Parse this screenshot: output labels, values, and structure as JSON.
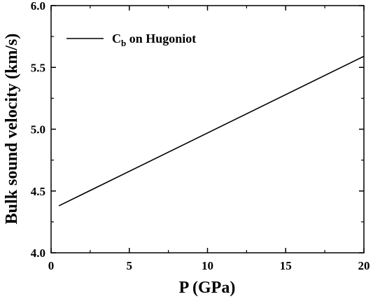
{
  "chart_data": {
    "type": "line",
    "xlabel": "P (GPa)",
    "ylabel": "Bulk sound velocity (km/s)",
    "xlim": [
      0,
      20
    ],
    "ylim": [
      4.0,
      6.0
    ],
    "xticks": [
      "0",
      "5",
      "10",
      "15",
      "20"
    ],
    "yticks": [
      "4.0",
      "4.5",
      "5.0",
      "5.5",
      "6.0"
    ],
    "grid": false,
    "legend_position": "top-left",
    "series": [
      {
        "name_main": "C",
        "name_sub": "b",
        "name_rest": " on Hugoniot",
        "color": "#000000",
        "x": [
          0.5,
          20
        ],
        "y": [
          4.38,
          5.59
        ]
      }
    ]
  }
}
